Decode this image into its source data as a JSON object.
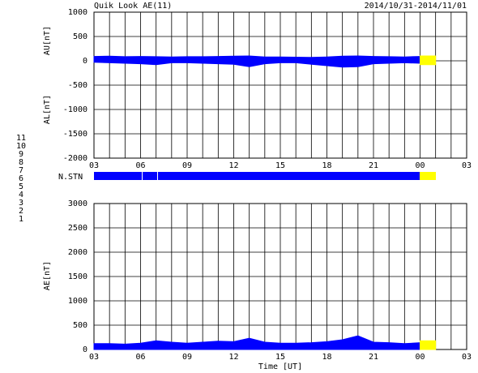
{
  "stations": [
    "11",
    "10",
    "9",
    "8",
    "7",
    "6",
    "5",
    "4",
    "3",
    "2",
    "1"
  ],
  "station_colors": [
    "#00e0e0",
    "#ff00ff",
    "#0000ff",
    "#e0e000",
    "#00c000",
    "#ff0000",
    "#d0d0d0",
    "#808080",
    "#008080",
    "#800080",
    "#0000c0"
  ],
  "station_bar": {
    "label": "N.STN"
  },
  "chart_data": [
    {
      "type": "area",
      "title": "Quik Look AE(11)",
      "subtitle": "2014/10/31-2014/11/01",
      "ylabels": [
        "AU[nT]",
        "AL[nT]"
      ],
      "xlim": [
        3,
        27
      ],
      "xticks": [
        {
          "value": 3,
          "label": "03"
        },
        {
          "value": 6,
          "label": "06"
        },
        {
          "value": 9,
          "label": "09"
        },
        12,
        15,
        18,
        21,
        {
          "value": 24,
          "label": "00"
        },
        {
          "value": 27,
          "label": "03"
        }
      ],
      "ylim": [
        -2000,
        1000
      ],
      "yticks": [
        -2000,
        -1500,
        -1000,
        -500,
        0,
        500,
        1000
      ],
      "grid": true,
      "series": [
        {
          "color": "#0000ff",
          "x": [
            3,
            4,
            5,
            6,
            7,
            8,
            9,
            10,
            11,
            12,
            13,
            14,
            15,
            16,
            17,
            18,
            19,
            20,
            21,
            22,
            23,
            24
          ],
          "values": [
            90,
            95,
            85,
            90,
            85,
            80,
            85,
            85,
            90,
            95,
            100,
            80,
            80,
            75,
            70,
            80,
            95,
            100,
            90,
            85,
            80,
            90
          ]
        },
        {
          "color": "#0000ff",
          "x": [
            3,
            4,
            5,
            6,
            7,
            8,
            9,
            10,
            11,
            12,
            13,
            14,
            15,
            16,
            17,
            18,
            19,
            20,
            21,
            22,
            23,
            24
          ],
          "values": [
            -30,
            -40,
            -50,
            -60,
            -80,
            -40,
            -40,
            -50,
            -60,
            -70,
            -120,
            -60,
            -40,
            -40,
            -70,
            -100,
            -130,
            -120,
            -60,
            -50,
            -40,
            -50
          ]
        },
        {
          "color": "#ffff00",
          "x": [
            24,
            25
          ],
          "values": [
            100,
            100
          ]
        },
        {
          "color": "#ffff00",
          "x": [
            24,
            25
          ],
          "values": [
            -80,
            -80
          ]
        }
      ]
    },
    {
      "type": "area",
      "ylabels": [
        "AE[nT]"
      ],
      "xlabel": "Time [UT]",
      "xlim": [
        3,
        27
      ],
      "xticks": [
        {
          "value": 3,
          "label": "03"
        },
        {
          "value": 6,
          "label": "06"
        },
        {
          "value": 9,
          "label": "09"
        },
        12,
        15,
        18,
        21,
        {
          "value": 24,
          "label": "00"
        },
        {
          "value": 27,
          "label": "03"
        }
      ],
      "ylim": [
        0,
        3000
      ],
      "yticks": [
        0,
        500,
        1000,
        1500,
        2000,
        2500,
        3000
      ],
      "grid": true,
      "series": [
        {
          "color": "#0000ff",
          "x": [
            3,
            4,
            5,
            6,
            7,
            8,
            9,
            10,
            11,
            12,
            13,
            14,
            15,
            16,
            17,
            18,
            19,
            20,
            21,
            22,
            23,
            24
          ],
          "values": [
            120,
            120,
            110,
            130,
            180,
            150,
            130,
            150,
            170,
            160,
            230,
            150,
            130,
            130,
            140,
            160,
            200,
            280,
            150,
            140,
            120,
            140
          ]
        },
        {
          "color": "#ffff00",
          "x": [
            24,
            25
          ],
          "values": [
            180,
            180
          ]
        }
      ]
    }
  ]
}
